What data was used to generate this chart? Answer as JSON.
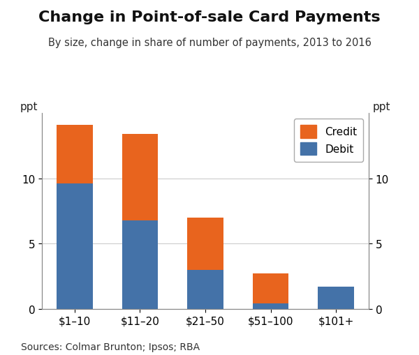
{
  "title": "Change in Point-of-sale Card Payments",
  "subtitle": "By size, change in share of number of payments, 2013 to 2016",
  "categories": [
    "$1–10",
    "$11–20",
    "$21–50",
    "$51–100",
    "$101+"
  ],
  "debit_values": [
    9.6,
    6.8,
    3.0,
    0.4,
    1.7
  ],
  "credit_values": [
    4.5,
    6.6,
    4.0,
    2.3,
    0.0
  ],
  "debit_color": "#4472a8",
  "credit_color": "#e8641e",
  "ppt_label": "ppt",
  "ylim": [
    0,
    15
  ],
  "yticks": [
    0,
    5,
    10
  ],
  "source_text": "Sources: Colmar Brunton; Ipsos; RBA",
  "background_color": "#ffffff",
  "title_fontsize": 16,
  "subtitle_fontsize": 10.5,
  "tick_fontsize": 11,
  "source_fontsize": 10
}
